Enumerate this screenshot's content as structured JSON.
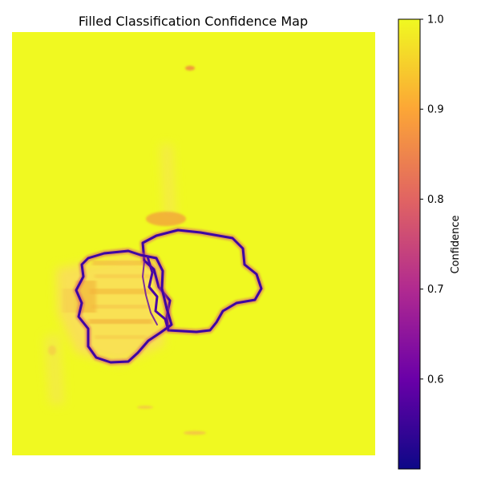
{
  "chart_data": {
    "type": "heatmap",
    "title": "Filled Classification Confidence Map",
    "colormap": "plasma",
    "background_value": 1.0,
    "axes_visible": false,
    "colorbar": {
      "label": "Confidence",
      "range": [
        0.5,
        1.0
      ],
      "ticks": [
        0.6,
        0.7,
        0.8,
        0.9,
        1.0
      ],
      "tick_labels": [
        "0.6",
        "0.7",
        "0.8",
        "0.9",
        "1.0"
      ],
      "colors": [
        "#0d0887",
        "#6a00a8",
        "#b12a90",
        "#e16462",
        "#fca636",
        "#f0f921"
      ]
    },
    "features": [
      {
        "name": "left-region-boundary",
        "min_confidence": 0.55
      },
      {
        "name": "right-region-boundary",
        "min_confidence": 0.55
      },
      {
        "name": "left-region-interior-streaks",
        "min_confidence": 0.9
      },
      {
        "name": "blob-above-right-region",
        "min_confidence": 0.9
      },
      {
        "name": "small-spot-top",
        "min_confidence": 0.9
      },
      {
        "name": "small-spot-bottom",
        "min_confidence": 0.93
      }
    ]
  }
}
